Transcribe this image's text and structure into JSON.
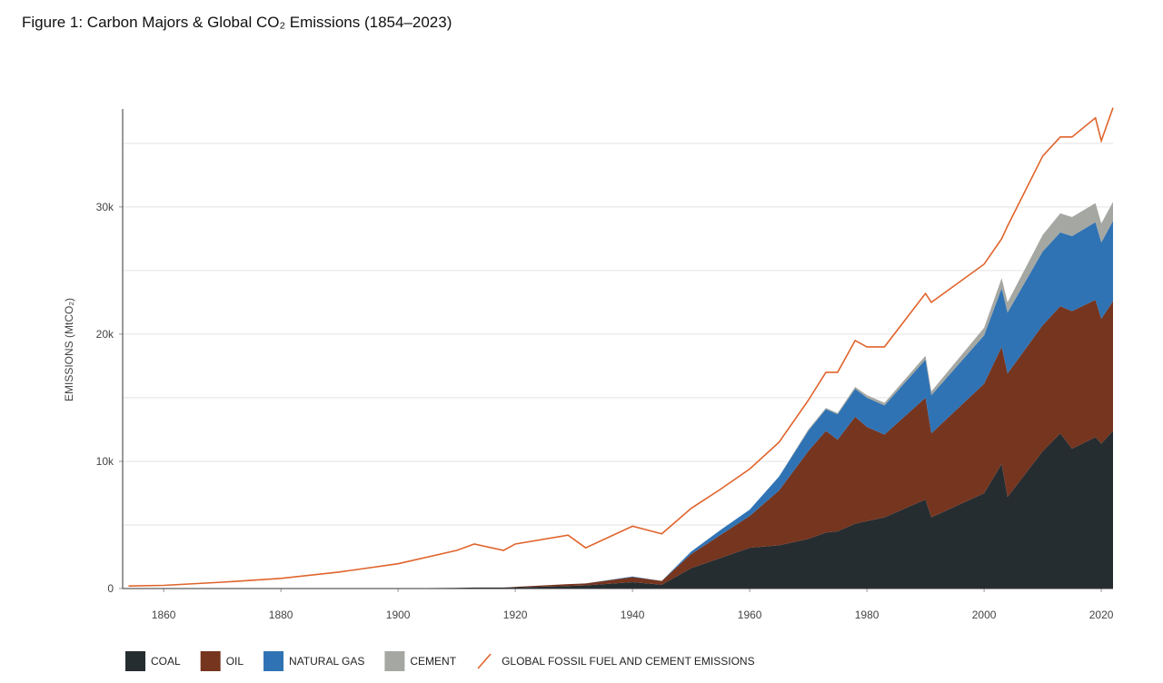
{
  "chart_data": {
    "type": "area",
    "title": "Figure 1: Carbon Majors & Global CO₂ Emissions (1854–2023)",
    "y_label": "EMISSIONS (MtCO₂)",
    "x": [
      1854,
      1860,
      1870,
      1880,
      1890,
      1900,
      1910,
      1913,
      1918,
      1920,
      1929,
      1932,
      1940,
      1945,
      1950,
      1955,
      1960,
      1965,
      1970,
      1973,
      1975,
      1978,
      1980,
      1983,
      1990,
      1991,
      2000,
      2003,
      2004,
      2010,
      2013,
      2015,
      2019,
      2020,
      2022
    ],
    "series": [
      {
        "name": "COAL",
        "color": "#262d31",
        "values": [
          0,
          0,
          0,
          0,
          0,
          20,
          50,
          80,
          80,
          100,
          200,
          250,
          500,
          300,
          1600,
          2400,
          3200,
          3400,
          3900,
          4400,
          4500,
          5100,
          5300,
          5600,
          7000,
          5600,
          7500,
          9800,
          7200,
          10800,
          12200,
          11000,
          11900,
          11400,
          12400
        ]
      },
      {
        "name": "OIL",
        "color": "#76351f",
        "values": [
          0,
          0,
          0,
          0,
          0,
          0,
          0,
          0,
          0,
          30,
          150,
          150,
          400,
          300,
          1100,
          1800,
          2500,
          4300,
          6900,
          8000,
          7200,
          8400,
          7400,
          6500,
          8000,
          6600,
          8600,
          9200,
          9700,
          9900,
          10000,
          10800,
          10800,
          9800,
          10200
        ]
      },
      {
        "name": "NATURAL GAS",
        "color": "#2f73b4",
        "values": [
          0,
          0,
          0,
          0,
          0,
          0,
          0,
          0,
          0,
          0,
          0,
          0,
          50,
          0,
          200,
          400,
          500,
          1100,
          1600,
          1700,
          2000,
          2200,
          2300,
          2300,
          3000,
          3000,
          3800,
          4600,
          4800,
          5800,
          5800,
          5900,
          6100,
          6000,
          6300
        ]
      },
      {
        "name": "CEMENT",
        "color": "#a5a7a2",
        "values": [
          0,
          0,
          0,
          0,
          0,
          0,
          0,
          0,
          0,
          0,
          0,
          0,
          0,
          0,
          0,
          0,
          0,
          0,
          100,
          100,
          100,
          150,
          200,
          200,
          300,
          300,
          600,
          800,
          800,
          1300,
          1500,
          1500,
          1500,
          1500,
          1500
        ]
      },
      {
        "name": "GLOBAL FOSSIL FUEL AND CEMENT EMISSIONS",
        "color": "#e0632b",
        "type": "line",
        "values": [
          200,
          250,
          500,
          800,
          1300,
          1950,
          3000,
          3500,
          3000,
          3500,
          4200,
          3200,
          4900,
          4300,
          6300,
          7800,
          9400,
          11500,
          14800,
          17000,
          17000,
          19500,
          19000,
          19000,
          23200,
          22500,
          25500,
          27500,
          28500,
          34000,
          35500,
          35500,
          37000,
          35200,
          37800
        ]
      }
    ],
    "xlim": [
      1853,
      2022
    ],
    "xticks": [
      1860,
      1880,
      1900,
      1920,
      1940,
      1960,
      1980,
      2000,
      2020
    ],
    "ylim": [
      0,
      37700
    ],
    "yticks": [
      0,
      {
        "value": 10000,
        "label": "10k"
      },
      {
        "value": 20000,
        "label": "20k"
      },
      {
        "value": 30000,
        "label": "30k"
      }
    ],
    "gridlines": [
      5000,
      10000,
      15000,
      20000,
      25000,
      30000,
      35000
    ],
    "grid": true,
    "legend": "bottom"
  }
}
